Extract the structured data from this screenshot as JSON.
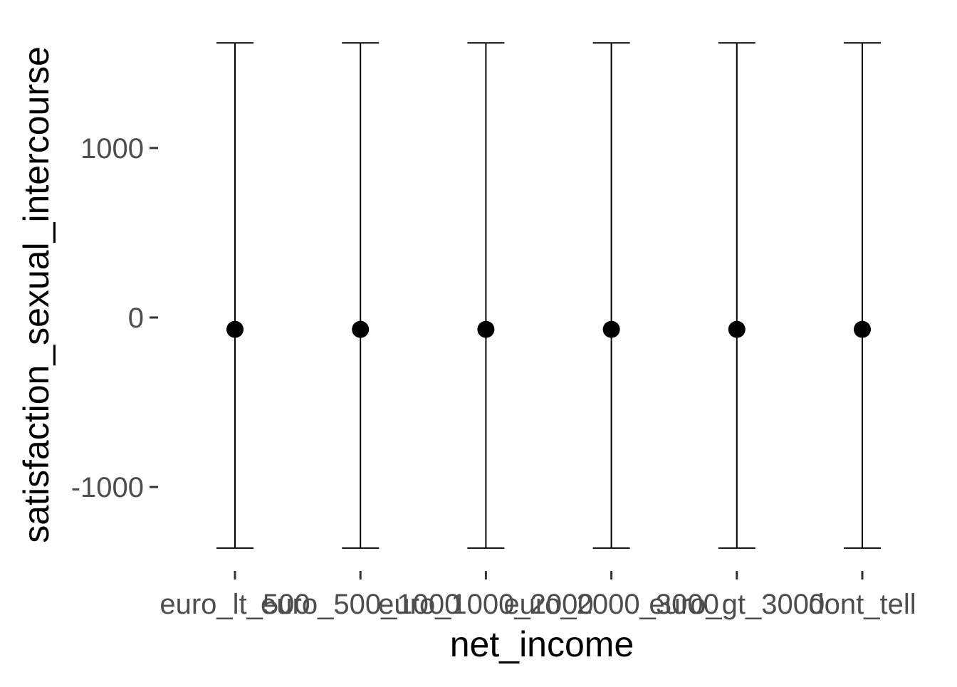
{
  "chart_data": {
    "type": "scatter",
    "subtype": "point-with-errorbars",
    "xlabel": "net_income",
    "ylabel": "satisfaction_sexual_intercourse",
    "categories": [
      "euro_lt_500",
      "euro_500_1000",
      "euro_1000_2000",
      "euro_2000_3000",
      "euro_gt_3000",
      "dont_tell"
    ],
    "y_ticks": [
      -1000,
      0,
      1000
    ],
    "y_tick_labels": [
      "-1000",
      "0",
      "1000"
    ],
    "ylim": [
      -1500,
      1650
    ],
    "series": [
      {
        "values": [
          -70,
          -70,
          -70,
          -70,
          -70,
          -70
        ],
        "lower": [
          -1360,
          -1360,
          -1360,
          -1360,
          -1360,
          -1360
        ],
        "upper": [
          1620,
          1620,
          1620,
          1620,
          1620,
          1620
        ]
      }
    ],
    "grid": false,
    "legend": "none",
    "colors": {
      "point": "#000000",
      "errorbar": "#000000",
      "tick_label": "#4d4d4d",
      "axis_title": "#000000",
      "background": "#ffffff"
    }
  }
}
